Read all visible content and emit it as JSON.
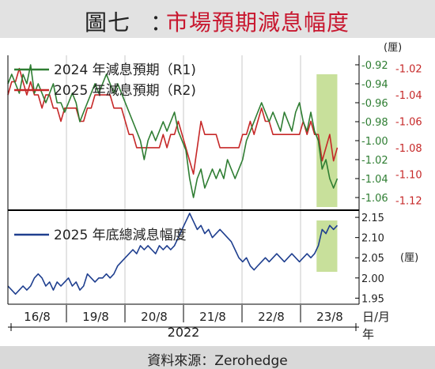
{
  "header": {
    "figure_label": "圖七",
    "colon": "：",
    "title": "市場預期減息幅度"
  },
  "footer": {
    "source": "資料來源：Zerohedge"
  },
  "colors": {
    "green": "#2e7d32",
    "red": "#c62828",
    "blue": "#1f3f8f",
    "highlight": "#b5d579",
    "title_red": "#c8172f"
  },
  "chart_data": [
    {
      "type": "line",
      "unit_label": "(厘)",
      "x_ticks": [
        "16/8",
        "19/8",
        "20/8",
        "21/8",
        "22/8",
        "23/8"
      ],
      "x_suffix_1": "日/月",
      "x_suffix_2": "年",
      "year_label": "2022",
      "y_left": {
        "ticks": [
          "-0.92",
          "-0.94",
          "-0.96",
          "-0.98",
          "-1.00",
          "-1.02",
          "-1.04",
          "-1.06"
        ],
        "range": [
          -0.91,
          -1.07
        ]
      },
      "y_right": {
        "ticks": [
          "-1.02",
          "-1.04",
          "-1.06",
          "-1.08",
          "-1.10",
          "-1.12"
        ],
        "range": [
          -1.01,
          -1.125
        ]
      },
      "highlight_region": {
        "x_start": 0.879,
        "x_end": 0.938
      },
      "series": [
        {
          "name": "2024 年減息預期（R1)",
          "axis": "left",
          "values": [
            -0.94,
            -0.93,
            -0.94,
            -0.95,
            -0.93,
            -0.94,
            -0.92,
            -0.95,
            -0.94,
            -0.95,
            -0.96,
            -0.95,
            -0.94,
            -0.96,
            -0.96,
            -0.97,
            -0.96,
            -0.95,
            -0.96,
            -0.98,
            -0.97,
            -0.96,
            -0.95,
            -0.94,
            -0.95,
            -0.94,
            -0.93,
            -0.94,
            -0.95,
            -0.94,
            -0.95,
            -0.96,
            -0.97,
            -0.98,
            -0.99,
            -1.0,
            -1.02,
            -1.0,
            -0.99,
            -1.0,
            -0.99,
            -0.98,
            -0.99,
            -0.98,
            -0.97,
            -0.99,
            -1.0,
            -1.01,
            -1.04,
            -1.06,
            -1.04,
            -1.03,
            -1.05,
            -1.04,
            -1.03,
            -1.04,
            -1.03,
            -1.04,
            -1.02,
            -1.03,
            -1.04,
            -1.03,
            -1.02,
            -1.0,
            -0.99,
            -0.98,
            -0.97,
            -0.96,
            -0.97,
            -0.98,
            -0.97,
            -0.98,
            -0.99,
            -0.97,
            -0.98,
            -0.99,
            -0.97,
            -0.96,
            -0.98,
            -0.99,
            -0.97,
            -0.99,
            -1.0,
            -1.03,
            -1.02,
            -1.04,
            -1.05,
            -1.04
          ]
        },
        {
          "name": "2025 年減息預期（R2)",
          "axis": "right",
          "values": [
            -1.04,
            -1.03,
            -1.03,
            -1.02,
            -1.03,
            -1.04,
            -1.03,
            -1.04,
            -1.04,
            -1.05,
            -1.04,
            -1.04,
            -1.05,
            -1.05,
            -1.06,
            -1.05,
            -1.05,
            -1.05,
            -1.05,
            -1.06,
            -1.06,
            -1.05,
            -1.05,
            -1.04,
            -1.04,
            -1.04,
            -1.04,
            -1.04,
            -1.05,
            -1.05,
            -1.05,
            -1.06,
            -1.07,
            -1.07,
            -1.08,
            -1.08,
            -1.08,
            -1.08,
            -1.08,
            -1.08,
            -1.08,
            -1.07,
            -1.08,
            -1.07,
            -1.07,
            -1.06,
            -1.07,
            -1.08,
            -1.09,
            -1.1,
            -1.08,
            -1.06,
            -1.07,
            -1.07,
            -1.07,
            -1.07,
            -1.08,
            -1.08,
            -1.08,
            -1.08,
            -1.08,
            -1.08,
            -1.07,
            -1.07,
            -1.06,
            -1.07,
            -1.06,
            -1.05,
            -1.06,
            -1.06,
            -1.07,
            -1.07,
            -1.07,
            -1.07,
            -1.07,
            -1.07,
            -1.07,
            -1.07,
            -1.06,
            -1.07,
            -1.06,
            -1.07,
            -1.07,
            -1.09,
            -1.08,
            -1.07,
            -1.09,
            -1.08
          ]
        }
      ]
    },
    {
      "type": "line",
      "unit_label": "(厘)",
      "y_right": {
        "ticks": [
          "1.95",
          "2.00",
          "2.05",
          "2.10",
          "2.15"
        ],
        "range": [
          1.935,
          2.16
        ]
      },
      "highlight_region": {
        "x_start": 0.879,
        "x_end": 0.938
      },
      "series": [
        {
          "name": "2025 年底總減息幅度",
          "axis": "right",
          "values": [
            1.98,
            1.97,
            1.96,
            1.97,
            1.98,
            1.97,
            1.98,
            2.0,
            2.01,
            2.0,
            1.98,
            1.99,
            1.97,
            1.99,
            1.98,
            1.99,
            2.0,
            1.98,
            1.99,
            1.97,
            1.98,
            2.01,
            2.0,
            1.99,
            2.0,
            2.0,
            2.01,
            2.0,
            2.01,
            2.03,
            2.04,
            2.05,
            2.06,
            2.07,
            2.06,
            2.08,
            2.07,
            2.08,
            2.07,
            2.06,
            2.08,
            2.07,
            2.08,
            2.07,
            2.08,
            2.1,
            2.12,
            2.14,
            2.16,
            2.14,
            2.12,
            2.13,
            2.11,
            2.12,
            2.1,
            2.11,
            2.12,
            2.11,
            2.1,
            2.09,
            2.07,
            2.05,
            2.04,
            2.05,
            2.03,
            2.02,
            2.03,
            2.04,
            2.05,
            2.04,
            2.05,
            2.06,
            2.05,
            2.04,
            2.05,
            2.06,
            2.05,
            2.04,
            2.05,
            2.06,
            2.05,
            2.06,
            2.08,
            2.12,
            2.11,
            2.13,
            2.12,
            2.13
          ]
        }
      ]
    }
  ]
}
